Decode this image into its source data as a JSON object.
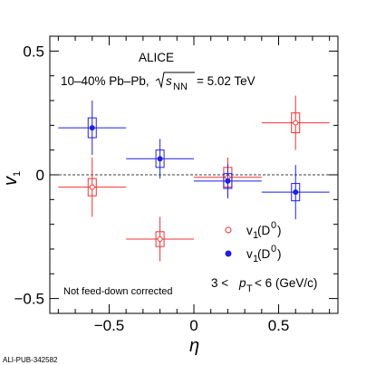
{
  "chart_data": {
    "type": "scatter",
    "title": "ALICE",
    "subtitle": "10–40% Pb–Pb, √sNN = 5.02 TeV",
    "xlabel": "η",
    "ylabel": "v1",
    "xlim": [
      -0.85,
      0.85
    ],
    "ylim": [
      -0.56,
      0.56
    ],
    "xticks": [
      -0.5,
      0,
      0.5
    ],
    "yticks": [
      -0.5,
      0,
      0.5
    ],
    "xtick_labels": [
      "−0.5",
      "0",
      "0.5"
    ],
    "ytick_labels": [
      "−0.5",
      "0",
      "0.5"
    ],
    "reference_line": 0,
    "legend_position": "center-right",
    "kinematic_range": "3 < pT < 6 (GeV/c)",
    "note": "Not feed-down corrected",
    "series": [
      {
        "name": "v1(D0)",
        "color": "#f03232",
        "marker": "open-circle",
        "points": [
          {
            "x": -0.6,
            "y": -0.05,
            "xerr": 0.2,
            "stat": 0.12,
            "sys": 0.035
          },
          {
            "x": -0.2,
            "y": -0.26,
            "xerr": 0.2,
            "stat": 0.09,
            "sys": 0.03
          },
          {
            "x": 0.2,
            "y": -0.01,
            "xerr": 0.2,
            "stat": 0.08,
            "sys": 0.04
          },
          {
            "x": 0.6,
            "y": 0.21,
            "xerr": 0.2,
            "stat": 0.11,
            "sys": 0.04
          }
        ]
      },
      {
        "name": "v1(D0)",
        "color": "#1f1fe6",
        "marker": "filled-circle",
        "points": [
          {
            "x": -0.6,
            "y": 0.19,
            "xerr": 0.2,
            "stat": 0.11,
            "sys": 0.04
          },
          {
            "x": -0.2,
            "y": 0.065,
            "xerr": 0.2,
            "stat": 0.08,
            "sys": 0.035
          },
          {
            "x": 0.2,
            "y": -0.025,
            "xerr": 0.2,
            "stat": 0.07,
            "sys": 0.03
          },
          {
            "x": 0.6,
            "y": -0.07,
            "xerr": 0.2,
            "stat": 0.11,
            "sys": 0.035
          }
        ]
      }
    ]
  },
  "footer_id": "ALI-PUB-342582"
}
